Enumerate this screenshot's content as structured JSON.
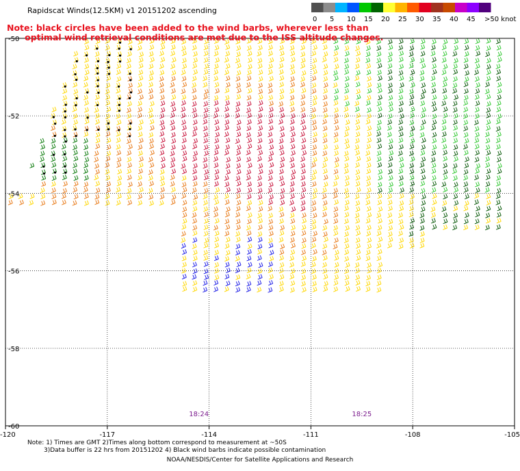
{
  "title": "Rapidscat Winds(12.5KM) v1 20151202 ascending",
  "note_red_line1": "Note: black circles have been added to the wind barbs, wherever less than",
  "note_red_line2": "optimal wind retrieval conditions are met due to the ISS altitude changes.",
  "legend": {
    "labels": [
      "0",
      "5",
      "10",
      "15",
      "20",
      "25",
      "30",
      "35",
      "40",
      "45",
      ">50 knots"
    ],
    "colors": [
      "#505050",
      "#8c8c8c",
      "#00b4ff",
      "#0055ff",
      "#00c800",
      "#006400",
      "#ffff32",
      "#ffb400",
      "#ff5a00",
      "#e1001e",
      "#a0321e",
      "#c84b00",
      "#c800c8",
      "#8c00ff",
      "#50007d"
    ]
  },
  "chart_data": {
    "type": "scatter",
    "xlabel": "",
    "ylabel": "",
    "xlim": [
      -120,
      -105
    ],
    "ylim": [
      -60,
      -50
    ],
    "xticks": [
      "-120",
      "-117",
      "-114",
      "-111",
      "-108",
      "-105"
    ],
    "yticks": [
      "-50",
      "-52",
      "-54",
      "-56",
      "-58",
      "-60"
    ],
    "grid": true,
    "time_labels": [
      {
        "text": "18:24",
        "x": -114.3
      },
      {
        "text": "18:25",
        "x": -109.5
      }
    ],
    "time_label_color": "#7a1a8c",
    "series": [
      {
        "speed_range_knots": [
          35,
          40
        ],
        "color": "#c8143c",
        "region": "core lon -116..-111, lat -51.5..-55"
      },
      {
        "speed_range_knots": [
          25,
          35
        ],
        "color": "#e87a18",
        "region": "lon -119..-110, lat -51..-56"
      },
      {
        "speed_range_knots": [
          20,
          25
        ],
        "color": "#ffd700",
        "region": "lon -120..-105, lat -50..-56.5"
      },
      {
        "speed_range_knots": [
          15,
          20
        ],
        "color": "#32c832",
        "region": "lon -111..-105, lat -50..-54"
      },
      {
        "speed_range_knots": [
          15,
          20
        ],
        "color": "#006400",
        "region": "lon -108..-105, lat -52..-56"
      },
      {
        "speed_range_knots": [
          10,
          15
        ],
        "color": "#1e1ee6",
        "region": "lon -114.5..-112, lat -55..-56.5"
      }
    ]
  },
  "footer_line1": "Note: 1) Times are GMT 2)Times along bottom correspond to measurement at ~50S",
  "footer_line2": "3)Data buffer is 22 hrs from 20151202 4) Black wind barbs indicate possible contamination",
  "credit": "NOAA/NESDIS/Center for Satellite Applications and Research"
}
